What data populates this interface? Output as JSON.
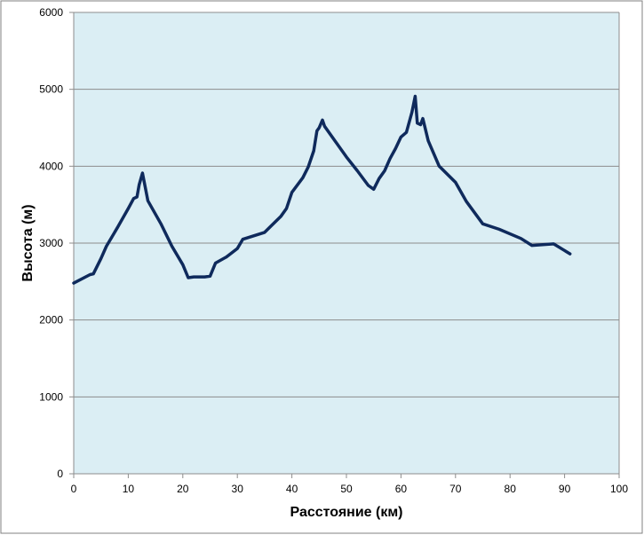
{
  "chart_data": {
    "type": "line",
    "title": "",
    "xlabel": "Расстояние (км)",
    "ylabel": "Высота (м)",
    "xlim": [
      0,
      100
    ],
    "ylim": [
      0,
      6000
    ],
    "x_ticks": [
      "0",
      "10",
      "20",
      "30",
      "40",
      "50",
      "60",
      "70",
      "80",
      "90",
      "100"
    ],
    "y_ticks": [
      "0",
      "1000",
      "2000",
      "3000",
      "4000",
      "5000",
      "6000"
    ],
    "grid": "horizontal",
    "legend": "none",
    "colors": {
      "plot_background": "#dbeef4",
      "line": "#0f2a5c",
      "gridline": "#8c8c8c",
      "border": "#808080"
    },
    "series": [
      {
        "x": [
          0,
          3,
          3.6,
          5,
          6,
          8,
          10,
          11,
          11.6,
          12,
          12.6,
          13.6,
          16,
          18,
          20,
          21,
          22,
          24,
          25,
          26,
          28,
          30,
          31,
          35,
          37,
          38,
          39,
          40,
          42,
          43,
          44,
          44.6,
          45,
          45.6,
          46,
          48,
          50,
          52,
          54,
          55,
          56,
          57,
          58,
          59,
          60,
          61,
          62,
          62.6,
          63,
          63.6,
          64,
          65,
          67,
          70,
          72,
          75,
          78,
          82,
          84,
          86,
          88,
          91
        ],
        "y": [
          2480,
          2590,
          2600,
          2800,
          2960,
          3200,
          3450,
          3580,
          3600,
          3760,
          3910,
          3550,
          3250,
          2960,
          2720,
          2550,
          2560,
          2560,
          2570,
          2740,
          2820,
          2930,
          3050,
          3140,
          3280,
          3350,
          3450,
          3660,
          3850,
          3990,
          4200,
          4460,
          4500,
          4600,
          4520,
          4320,
          4120,
          3940,
          3750,
          3700,
          3840,
          3940,
          4100,
          4230,
          4380,
          4440,
          4700,
          4910,
          4560,
          4540,
          4620,
          4330,
          4000,
          3790,
          3540,
          3250,
          3180,
          3060,
          2970,
          2980,
          2990,
          2860
        ]
      }
    ]
  }
}
